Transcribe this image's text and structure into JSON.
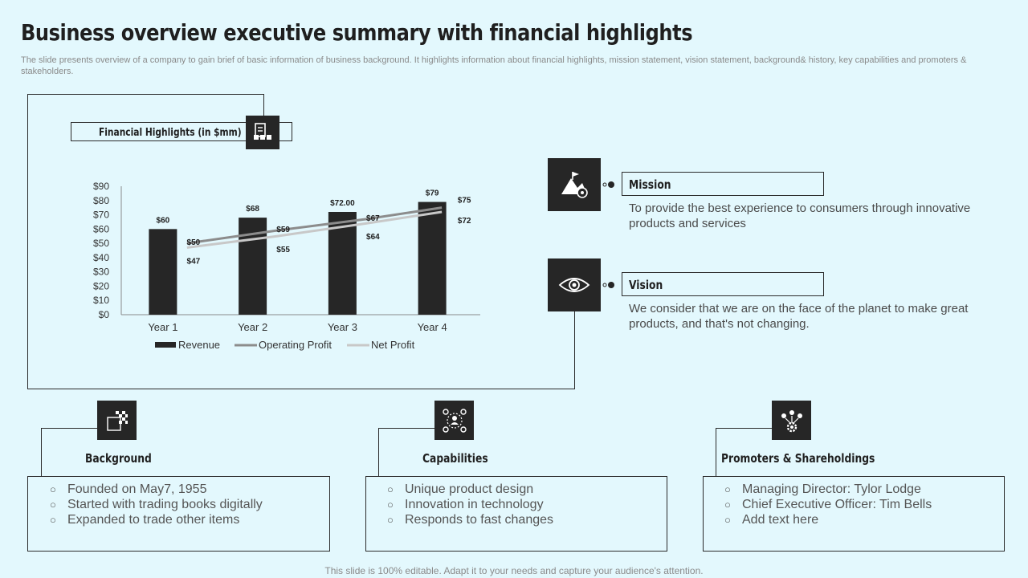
{
  "header": {
    "title": "Business overview executive summary with financial highlights",
    "subtitle": "The slide presents overview of a company to  gain brief of basic information of business background. It highlights information about financial highlights, mission statement, vision statement, background& history, key capabilities and promoters & stakeholders."
  },
  "financial": {
    "title": "Financial Highlights (in $mm)",
    "icon": "finance-document-icon"
  },
  "chart_data": {
    "type": "bar",
    "categories": [
      "Year 1",
      "Year 2",
      "Year 3",
      "Year 4"
    ],
    "series": [
      {
        "name": "Revenue",
        "kind": "bar",
        "values": [
          60,
          68,
          72,
          79
        ],
        "labels": [
          "$60",
          "$68",
          "$72.00",
          "$79"
        ],
        "color": "#262626"
      },
      {
        "name": "Operating Profit",
        "kind": "line",
        "values": [
          50,
          59,
          67,
          75
        ],
        "labels": [
          "$50",
          "$59",
          "$67",
          "$75"
        ],
        "color": "#8c8c8c"
      },
      {
        "name": "Net Profit",
        "kind": "line",
        "values": [
          47,
          55,
          64,
          72
        ],
        "labels": [
          "$47",
          "$55",
          "$64",
          "$72"
        ],
        "color": "#c8c8c8"
      }
    ],
    "yticks": [
      "$90",
      "$80",
      "$70",
      "$60",
      "$50",
      "$40",
      "$30",
      "$20",
      "$10",
      "$0"
    ],
    "ylim": [
      0,
      90
    ],
    "legend_position": "bottom"
  },
  "mission": {
    "label": "Mission",
    "text": "To provide the best experience to consumers through  innovative products and services",
    "icon": "mountain-flag-target-icon"
  },
  "vision": {
    "label": "Vision",
    "text": "We consider that we are on the face of the planet to make great products, and that's not changing.",
    "icon": "eye-icon"
  },
  "background": {
    "title": "Background",
    "icon": "checkered-flag-icon",
    "items": [
      "Founded on May7, 1955",
      "Started with trading books digitally",
      "Expanded to trade other items"
    ]
  },
  "capabilities": {
    "title": "Capabilities",
    "icon": "network-people-icon",
    "items": [
      "Unique product design",
      "Innovation  in technology",
      "Responds to fast changes"
    ]
  },
  "promoters": {
    "title": "Promoters & Shareholdings",
    "icon": "people-gear-icon",
    "items": [
      "Managing Director: Tylor Lodge",
      "Chief Executive Officer: Tim Bells",
      "Add text here"
    ]
  },
  "footer": {
    "text": "This slide is 100% editable. Adapt it to your needs and capture your audience's attention."
  },
  "colors": {
    "background": "#e3f8fd",
    "dark": "#262626",
    "operating_profit": "#8c8c8c",
    "net_profit": "#c8c8c8"
  }
}
